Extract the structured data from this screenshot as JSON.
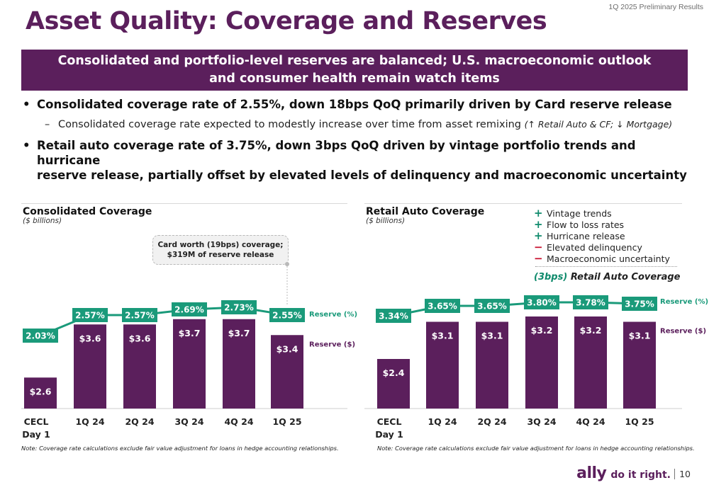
{
  "header": {
    "top_right": "1Q 2025 Preliminary Results",
    "title": "Asset Quality: Coverage and Reserves",
    "banner_line1": "Consolidated and portfolio-level reserves are balanced; U.S. macroeconomic outlook",
    "banner_line2": "and consumer health remain watch items"
  },
  "bullets": {
    "b1": "Consolidated coverage rate of 2.55%, down 18bps QoQ  primarily driven by Card reserve release",
    "b1_sub": "Consolidated coverage rate expected to modestly increase over time from asset remixing",
    "b1_sub_italic": "(↑ Retail Auto & CF; ↓ Mortgage)",
    "b2_line1": "Retail auto coverage rate of 3.75%, down 3bps QoQ driven by vintage portfolio trends and hurricane",
    "b2_line2": "reserve release, partially offset by elevated levels of delinquency and macroeconomic uncertainty"
  },
  "left_chart": {
    "title": "Consolidated Coverage",
    "subtitle": "($ billions)",
    "callout_line1": "Card worth (19bps) coverage;",
    "callout_line2": "$319M of reserve release",
    "note": "Note: Coverage rate calculations exclude fair value adjustment for loans in hedge accounting relationships."
  },
  "right_chart": {
    "title": "Retail Auto Coverage",
    "subtitle": "($ billions)",
    "legend": [
      {
        "sign": "+",
        "label": "Vintage trends",
        "color": "#0f8a6c"
      },
      {
        "sign": "+",
        "label": "Flow to loss rates",
        "color": "#0f8a6c"
      },
      {
        "sign": "+",
        "label": "Hurricane release",
        "color": "#0f8a6c"
      },
      {
        "sign": "−",
        "label": "Elevated delinquency",
        "color": "#c8102e"
      },
      {
        "sign": "−",
        "label": "Macroeconomic uncertainty",
        "color": "#c8102e"
      }
    ],
    "coverage_change": "(3bps)",
    "coverage_change_label": "Retail Auto Coverage",
    "note": "Note: Coverage rate calculations exclude fair value adjustment for loans in hedge accounting relationships."
  },
  "footer": {
    "logo": "ally",
    "tagline": "do it right.",
    "page": "10"
  },
  "colors": {
    "purple": "#5b1f5c",
    "green": "#1a9a7a",
    "dark_green": "#0f8a6c"
  },
  "chart_data": [
    {
      "type": "bar",
      "title": "Consolidated Coverage",
      "subtitle": "($ billions)",
      "categories": [
        [
          "CECL",
          "Day 1"
        ],
        [
          "1Q 24"
        ],
        [
          "2Q 24"
        ],
        [
          "3Q 24"
        ],
        [
          "4Q 24"
        ],
        [
          "1Q 25"
        ]
      ],
      "series": [
        {
          "name": "Reserve ($)",
          "values": [
            2.6,
            3.6,
            3.6,
            3.7,
            3.7,
            3.4
          ],
          "labels": [
            "$2.6",
            "$3.6",
            "$3.6",
            "$3.7",
            "$3.7",
            "$3.4"
          ],
          "color": "#5b1f5c"
        },
        {
          "name": "Reserve (%)",
          "values": [
            2.03,
            2.57,
            2.57,
            2.69,
            2.73,
            2.55
          ],
          "labels": [
            "2.03%",
            "2.57%",
            "2.57%",
            "2.69%",
            "2.73%",
            "2.55%"
          ],
          "color": "#1a9a7a"
        }
      ]
    },
    {
      "type": "bar",
      "title": "Retail Auto Coverage",
      "subtitle": "($ billions)",
      "categories": [
        [
          "CECL",
          "Day 1"
        ],
        [
          "1Q 24"
        ],
        [
          "2Q 24"
        ],
        [
          "3Q 24"
        ],
        [
          "4Q 24"
        ],
        [
          "1Q 25"
        ]
      ],
      "series": [
        {
          "name": "Reserve ($)",
          "values": [
            2.4,
            3.1,
            3.1,
            3.2,
            3.2,
            3.1
          ],
          "labels": [
            "$2.4",
            "$3.1",
            "$3.1",
            "$3.2",
            "$3.2",
            "$3.1"
          ],
          "color": "#5b1f5c"
        },
        {
          "name": "Reserve (%)",
          "values": [
            3.34,
            3.65,
            3.65,
            3.8,
            3.78,
            3.75
          ],
          "labels": [
            "3.34%",
            "3.65%",
            "3.65%",
            "3.80%",
            "3.78%",
            "3.75%"
          ],
          "color": "#1a9a7a"
        }
      ]
    }
  ]
}
